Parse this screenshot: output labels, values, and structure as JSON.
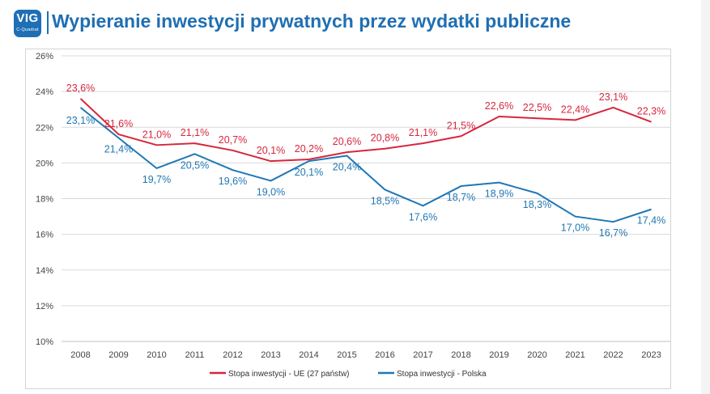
{
  "header": {
    "logo_text": "VIG",
    "logo_subtext": "C-Quadrat",
    "title": "Wypieranie inwestycji prywatnych przez wydatki publiczne"
  },
  "colors": {
    "eu": "#d7263d",
    "pl": "#1f77b4",
    "title": "#1f6fb2",
    "grid": "#d9d9d9"
  },
  "chart_data": {
    "type": "line",
    "title": "Wypieranie inwestycji prywatnych przez wydatki publiczne",
    "categories": [
      "2008",
      "2009",
      "2010",
      "2011",
      "2012",
      "2013",
      "2014",
      "2015",
      "2016",
      "2017",
      "2018",
      "2019",
      "2020",
      "2021",
      "2022",
      "2023"
    ],
    "ylim": [
      10,
      26
    ],
    "yticks": [
      "10%",
      "12%",
      "14%",
      "16%",
      "18%",
      "20%",
      "22%",
      "24%",
      "26%"
    ],
    "grid": true,
    "legend_position": "bottom",
    "series": [
      {
        "name": "Stopa inwestycji - UE (27 państw)",
        "color": "#d7263d",
        "values": [
          23.6,
          21.6,
          21.0,
          21.1,
          20.7,
          20.1,
          20.2,
          20.6,
          20.8,
          21.1,
          21.5,
          22.6,
          22.5,
          22.4,
          23.1,
          22.3
        ],
        "labels": [
          "23,6%",
          "21,6%",
          "21,0%",
          "21,1%",
          "20,7%",
          "20,1%",
          "20,2%",
          "20,6%",
          "20,8%",
          "21,1%",
          "21,5%",
          "22,6%",
          "22,5%",
          "22,4%",
          "23,1%",
          "22,3%"
        ]
      },
      {
        "name": "Stopa inwestycji - Polska",
        "color": "#1f77b4",
        "values": [
          23.1,
          21.4,
          19.7,
          20.5,
          19.6,
          19.0,
          20.1,
          20.4,
          18.5,
          17.6,
          18.7,
          18.9,
          18.3,
          17.0,
          16.7,
          17.4
        ],
        "labels": [
          "23,1%",
          "21,4%",
          "19,7%",
          "20,5%",
          "19,6%",
          "19,0%",
          "20,1%",
          "20,4%",
          "18,5%",
          "17,6%",
          "18,7%",
          "18,9%",
          "18,3%",
          "17,0%",
          "16,7%",
          "17,4%"
        ]
      }
    ]
  }
}
